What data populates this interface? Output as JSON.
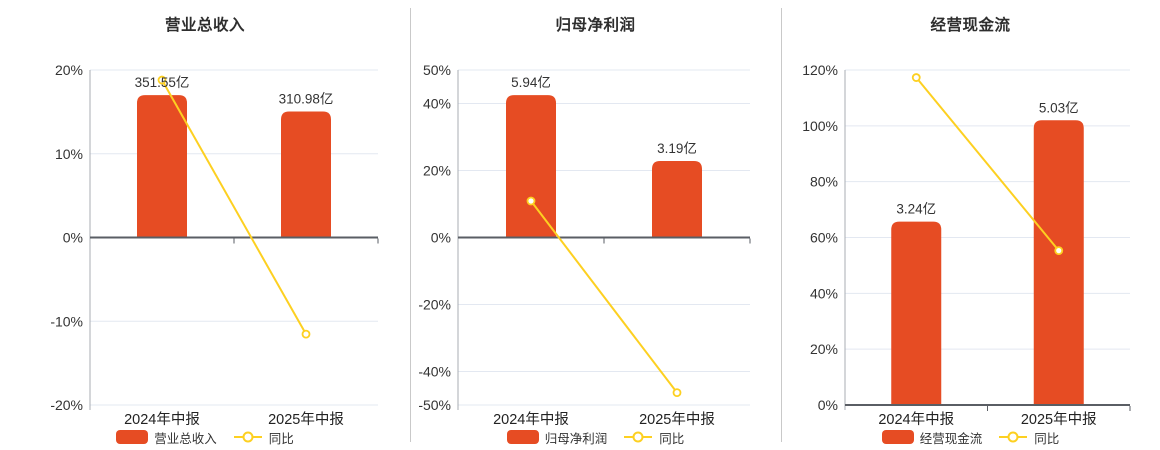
{
  "colors": {
    "bar": "#e64c23",
    "line": "#fdd021",
    "grid": "#e3e8f1",
    "axis_line": "#a8acb3",
    "zero_line": "#5a5e64",
    "divider": "#c9c9c9",
    "tick_text": "#333333",
    "category_text": "#222222",
    "value_text": "#333333"
  },
  "chart_data": [
    {
      "type": "bar-line",
      "title": "营业总收入",
      "categories": [
        "2024年中报",
        "2025年中报"
      ],
      "bar_series": {
        "name": "营业总收入",
        "unit": "亿",
        "values": [
          351.55,
          310.98
        ],
        "labels": [
          "351.55亿",
          "310.98亿"
        ]
      },
      "line_series": {
        "name": "同比",
        "unit": "%",
        "values": [
          18.8,
          -11.54
        ]
      },
      "y_axis": {
        "unit": "%",
        "min": -20,
        "max": 20,
        "ticks": [
          20,
          10,
          0,
          -10,
          -20
        ]
      },
      "legend": [
        "营业总收入",
        "同比"
      ],
      "legend_position": "bottom",
      "grid": true
    },
    {
      "type": "bar-line",
      "title": "归母净利润",
      "categories": [
        "2024年中报",
        "2025年中报"
      ],
      "bar_series": {
        "name": "归母净利润",
        "unit": "亿",
        "values": [
          5.94,
          3.19
        ],
        "labels": [
          "5.94亿",
          "3.19亿"
        ]
      },
      "line_series": {
        "name": "同比",
        "unit": "%",
        "values": [
          10.9,
          -46.3
        ]
      },
      "y_axis": {
        "unit": "%",
        "min": -50,
        "max": 50,
        "ticks": [
          50,
          40,
          20,
          0,
          -20,
          -40,
          -50
        ]
      },
      "legend": [
        "归母净利润",
        "同比"
      ],
      "legend_position": "bottom",
      "grid": true
    },
    {
      "type": "bar-line",
      "title": "经营现金流",
      "categories": [
        "2024年中报",
        "2025年中报"
      ],
      "bar_series": {
        "name": "经营现金流",
        "unit": "亿",
        "values": [
          3.24,
          5.03
        ],
        "labels": [
          "3.24亿",
          "5.03亿"
        ]
      },
      "line_series": {
        "name": "同比",
        "unit": "%",
        "values": [
          117.3,
          55.3
        ]
      },
      "y_axis": {
        "unit": "%",
        "min": 0,
        "max": 120,
        "ticks": [
          120,
          100,
          80,
          60,
          40,
          20,
          0
        ]
      },
      "legend": [
        "经营现金流",
        "同比"
      ],
      "legend_position": "bottom",
      "grid": true
    }
  ]
}
